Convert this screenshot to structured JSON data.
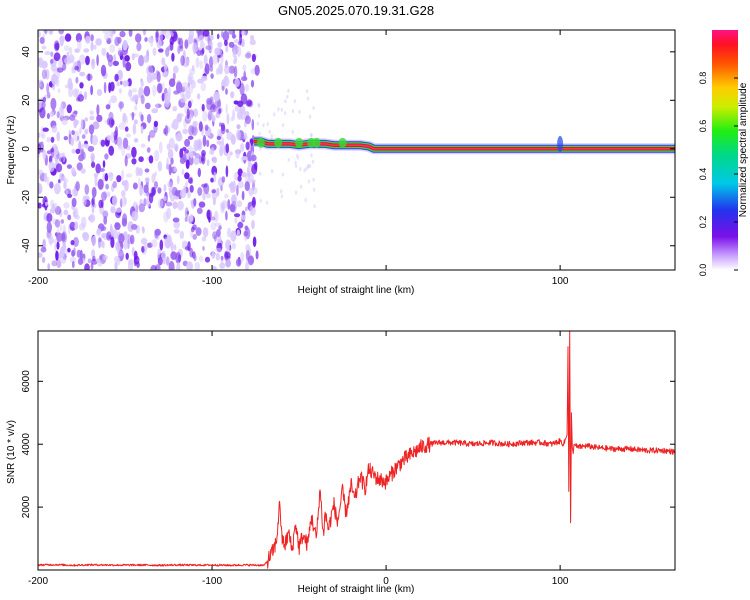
{
  "title": "GN05.2025.070.19.31.G28",
  "colors": {
    "trace": "#ee2222",
    "ridge_fill": "#dd1144",
    "ridge_core": "#ff3344",
    "ridge_edge_green": "#33dd33",
    "ridge_edge_blue": "#2244ee",
    "noise_light": "#d8c6ff",
    "noise_mid": "#9a66f0",
    "noise_dark": "#6a16e8"
  },
  "chart_data": [
    {
      "type": "heatmap",
      "xlabel": "Height of straight line (km)",
      "ylabel": "Frequency (Hz)",
      "xlim": [
        -200,
        166
      ],
      "ylim": [
        -50,
        49
      ],
      "x_ticks": [
        -200,
        -100,
        0,
        100
      ],
      "x_tick_labels": [
        "-200",
        "-100",
        "",
        "100"
      ],
      "y_ticks": [
        -40,
        -20,
        0,
        20,
        40
      ],
      "y_tick_labels": [
        "-40",
        "-20",
        "0",
        "20",
        "40"
      ],
      "noise_region_x": [
        -200,
        -74
      ],
      "ridge": {
        "x": [
          -76,
          -72,
          -68,
          -64,
          -60,
          -55,
          -50,
          -45,
          -40,
          -35,
          -30,
          -25,
          -20,
          -15,
          -10,
          -7,
          0,
          20,
          50,
          80,
          100,
          120,
          150,
          166
        ],
        "y": [
          3,
          3,
          2,
          2,
          2,
          2,
          1.5,
          2,
          2,
          2,
          1.5,
          1.5,
          1.5,
          1.5,
          1,
          0,
          0,
          0,
          0,
          0,
          0,
          0,
          0,
          0
        ]
      },
      "colorbar": {
        "label": "Normalized spectral amplitude",
        "range": [
          0,
          1
        ],
        "ticks": [
          0.0,
          0.2,
          0.4,
          0.6,
          0.8
        ],
        "tick_labels": [
          "0.0",
          "0.2",
          "0.4",
          "0.6",
          "0.8"
        ]
      }
    },
    {
      "type": "line",
      "xlabel": "Height of straight line (km)",
      "ylabel": "SNR (10 * v/v)",
      "xlim": [
        -200,
        166
      ],
      "ylim": [
        0,
        7600
      ],
      "x_ticks": [
        -200,
        -100,
        0,
        100
      ],
      "x_tick_labels": [
        "-200",
        "-100",
        "0",
        "100"
      ],
      "y_ticks": [
        2000,
        4000,
        6000
      ],
      "y_tick_labels": [
        "2000",
        "4000",
        "6000"
      ],
      "series": [
        {
          "x": [
            -200,
            -190,
            -180,
            -170,
            -160,
            -150,
            -140,
            -130,
            -120,
            -110,
            -100,
            -90,
            -80,
            -70,
            -68,
            -65,
            -63,
            -61,
            -60,
            -58,
            -56,
            -54,
            -52,
            -50,
            -48,
            -45,
            -43,
            -40,
            -38,
            -36,
            -35,
            -33,
            -30,
            -28,
            -25,
            -23,
            -20,
            -18,
            -15,
            -12,
            -10,
            -5,
            0,
            5,
            10,
            15,
            20,
            25,
            30,
            40,
            50,
            60,
            70,
            80,
            90,
            95,
            100,
            102,
            104,
            104.5,
            105,
            105.5,
            106,
            106.5,
            107,
            107.5,
            108,
            110,
            115,
            120,
            130,
            140,
            150,
            160,
            166
          ],
          "y": [
            160,
            170,
            150,
            165,
            160,
            155,
            160,
            150,
            160,
            155,
            160,
            150,
            160,
            150,
            300,
            600,
            900,
            2200,
            1000,
            800,
            1200,
            600,
            1500,
            700,
            1100,
            800,
            1700,
            1000,
            2600,
            1100,
            1800,
            1300,
            2100,
            1500,
            2500,
            1800,
            2700,
            2200,
            3000,
            2600,
            3200,
            2900,
            2800,
            3200,
            3500,
            3700,
            3900,
            4000,
            4050,
            4050,
            4000,
            4050,
            4000,
            4050,
            4050,
            4000,
            4100,
            4000,
            4300,
            7100,
            2500,
            7600,
            1500,
            5000,
            3900,
            3700,
            4000,
            3900,
            3950,
            3900,
            3850,
            3850,
            3800,
            3800,
            3750
          ]
        }
      ]
    }
  ]
}
